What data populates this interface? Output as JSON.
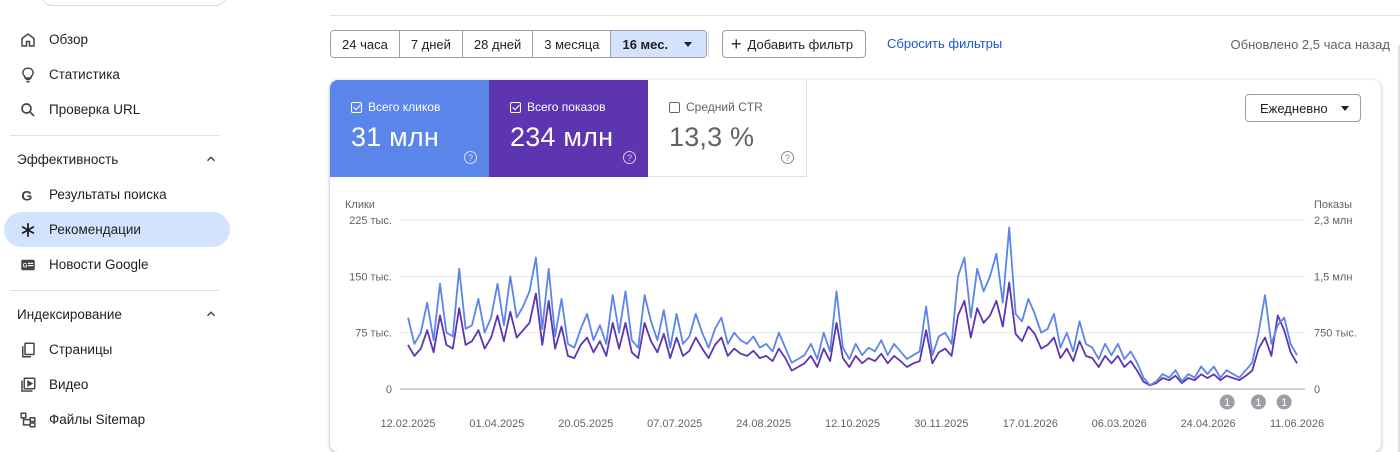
{
  "sidebar": {
    "items": [
      {
        "label": "Обзор",
        "icon": "home-icon"
      },
      {
        "label": "Статистика",
        "icon": "lightbulb-icon"
      },
      {
        "label": "Проверка URL",
        "icon": "search-icon"
      }
    ],
    "sections": [
      {
        "title": "Эффективность",
        "items": [
          {
            "label": "Результаты поиска",
            "icon": "google-g-icon"
          },
          {
            "label": "Рекомендации",
            "icon": "asterisk-icon",
            "active": true
          },
          {
            "label": "Новости Google",
            "icon": "news-icon"
          }
        ]
      },
      {
        "title": "Индексирование",
        "items": [
          {
            "label": "Страницы",
            "icon": "pages-icon"
          },
          {
            "label": "Видео",
            "icon": "video-icon"
          },
          {
            "label": "Файлы Sitemap",
            "icon": "sitemap-icon"
          }
        ]
      }
    ]
  },
  "toolbar": {
    "ranges": [
      "24 часа",
      "7 дней",
      "28 дней",
      "3 месяца",
      "16 мес."
    ],
    "active_range": "16 мес.",
    "add_filter": "Добавить фильтр",
    "reset_filters": "Сбросить фильтры",
    "updated": "Обновлено 2,5 часа назад"
  },
  "metrics": {
    "clicks": {
      "label": "Всего кликов",
      "value": "31 млн",
      "checked": true,
      "color": "#5b85e8"
    },
    "impressions": {
      "label": "Всего показов",
      "value": "234 млн",
      "checked": true,
      "color": "#5e35b1"
    },
    "ctr": {
      "label": "Средний CTR",
      "value": "13,3 %",
      "checked": false
    }
  },
  "granularity": "Ежедневно",
  "chart_data": {
    "type": "line",
    "left_axis_label": "Клики",
    "right_axis_label": "Показы",
    "left_ticks": [
      "225 тыс.",
      "150 тыс.",
      "75 тыс.",
      "0"
    ],
    "right_ticks": [
      "2,3 млн",
      "1,5 млн",
      "750 тыс.",
      "0"
    ],
    "left_ylim": [
      0,
      225000
    ],
    "right_ylim": [
      0,
      2300000
    ],
    "x_tick_labels": [
      "12.02.2025",
      "01.04.2025",
      "20.05.2025",
      "07.07.2025",
      "24.08.2025",
      "12.10.2025",
      "30.11.2025",
      "17.01.2026",
      "06.03.2026",
      "24.04.2026",
      "11.06.2026"
    ],
    "annotations": [
      {
        "label": "1",
        "date": "04.05.2026"
      },
      {
        "label": "1",
        "date": "21.05.2026"
      },
      {
        "label": "1",
        "date": "04.06.2026"
      }
    ],
    "series": [
      {
        "name": "Всего кликов",
        "color": "#5b85e8",
        "axis": "left",
        "values": [
          95000,
          60000,
          75000,
          115000,
          65000,
          140000,
          75000,
          70000,
          160000,
          80000,
          85000,
          120000,
          75000,
          95000,
          140000,
          85000,
          150000,
          95000,
          110000,
          130000,
          175000,
          80000,
          160000,
          70000,
          120000,
          60000,
          55000,
          80000,
          100000,
          65000,
          85000,
          60000,
          125000,
          75000,
          130000,
          65000,
          55000,
          125000,
          90000,
          65000,
          105000,
          55000,
          100000,
          60000,
          70000,
          100000,
          75000,
          55000,
          80000,
          95000,
          60000,
          75000,
          65000,
          60000,
          70000,
          55000,
          60000,
          50000,
          75000,
          55000,
          35000,
          40000,
          45000,
          60000,
          40000,
          75000,
          50000,
          130000,
          55000,
          40000,
          60000,
          45000,
          55000,
          50000,
          65000,
          45000,
          60000,
          50000,
          40000,
          45000,
          50000,
          110000,
          45000,
          70000,
          75000,
          60000,
          150000,
          175000,
          95000,
          160000,
          130000,
          150000,
          180000,
          115000,
          215000,
          100000,
          90000,
          120000,
          100000,
          75000,
          80000,
          100000,
          55000,
          75000,
          50000,
          90000,
          60000,
          55000,
          40000,
          60000,
          45000,
          60000,
          40000,
          50000,
          35000,
          15000,
          5000,
          10000,
          20000,
          15000,
          25000,
          10000,
          20000,
          15000,
          30000,
          20000,
          30000,
          15000,
          25000,
          20000,
          15000,
          25000,
          35000,
          75000,
          125000,
          60000,
          85000,
          95000,
          60000,
          45000
        ]
      },
      {
        "name": "Всего показов",
        "color": "#5e35b1",
        "axis": "right",
        "values": [
          600000,
          450000,
          550000,
          800000,
          500000,
          1000000,
          600000,
          550000,
          1100000,
          600000,
          650000,
          800000,
          550000,
          700000,
          1000000,
          650000,
          1050000,
          700000,
          800000,
          900000,
          1300000,
          600000,
          1200000,
          550000,
          850000,
          450000,
          420000,
          600000,
          700000,
          500000,
          650000,
          450000,
          900000,
          550000,
          900000,
          500000,
          420000,
          900000,
          650000,
          500000,
          750000,
          420000,
          700000,
          450000,
          520000,
          700000,
          550000,
          420000,
          600000,
          700000,
          450000,
          550000,
          480000,
          450000,
          520000,
          420000,
          450000,
          380000,
          550000,
          420000,
          250000,
          300000,
          350000,
          450000,
          300000,
          550000,
          380000,
          900000,
          420000,
          300000,
          450000,
          350000,
          420000,
          380000,
          480000,
          350000,
          450000,
          380000,
          300000,
          350000,
          380000,
          800000,
          350000,
          500000,
          550000,
          450000,
          1000000,
          1200000,
          700000,
          1100000,
          900000,
          1000000,
          1200000,
          850000,
          1450000,
          750000,
          650000,
          850000,
          750000,
          550000,
          600000,
          700000,
          420000,
          550000,
          380000,
          650000,
          450000,
          420000,
          300000,
          450000,
          350000,
          450000,
          300000,
          380000,
          250000,
          100000,
          50000,
          80000,
          150000,
          120000,
          180000,
          80000,
          150000,
          120000,
          200000,
          150000,
          200000,
          120000,
          180000,
          150000,
          120000,
          180000,
          250000,
          550000,
          700000,
          450000,
          1000000,
          800000,
          500000,
          350000
        ]
      }
    ]
  }
}
